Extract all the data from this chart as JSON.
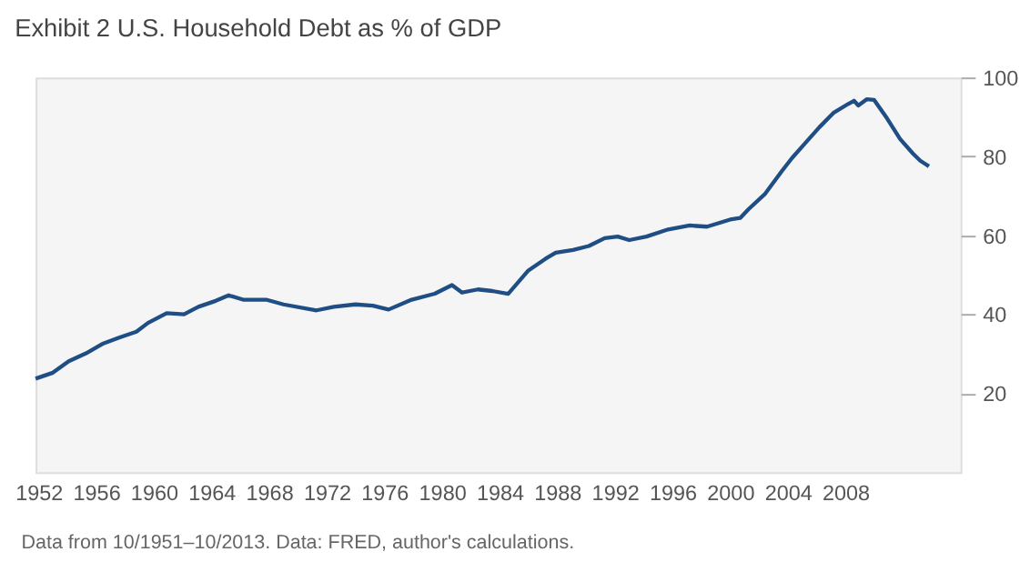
{
  "chart_data": {
    "type": "line",
    "title": "Exhibit 2 U.S. Household Debt as % of GDP",
    "annotations": [
      "Data from 10/1951–10/2013. Data: FRED, author's calculations."
    ],
    "x": [
      1951.8,
      1953.0,
      1954.1,
      1955.3,
      1956.5,
      1957.6,
      1958.8,
      1959.6,
      1960.9,
      1962.1,
      1963.1,
      1964.3,
      1965.2,
      1966.2,
      1967.8,
      1969.0,
      1971.3,
      1972.5,
      1974.0,
      1975.2,
      1976.3,
      1977.9,
      1979.5,
      1980.7,
      1981.4,
      1982.5,
      1983.5,
      1984.6,
      1986.0,
      1987.2,
      1987.9,
      1989.1,
      1990.2,
      1991.3,
      1992.2,
      1993.0,
      1994.2,
      1995.7,
      1997.2,
      1998.4,
      2000.0,
      2000.7,
      2001.3,
      2002.4,
      2003.6,
      2004.3,
      2005.3,
      2006.2,
      2007.2,
      2008.2,
      2008.6,
      2008.9,
      2009.5,
      2010.0,
      2010.9,
      2011.8,
      2012.7,
      2013.2,
      2013.8
    ],
    "series": [
      {
        "color": "#1f4e85",
        "values": [
          23.7,
          25.2,
          28.1,
          30.1,
          32.6,
          34.1,
          35.6,
          37.8,
          40.3,
          40.0,
          41.9,
          43.4,
          44.8,
          43.7,
          43.7,
          42.5,
          41.0,
          41.9,
          42.5,
          42.2,
          41.2,
          43.7,
          45.2,
          47.4,
          45.5,
          46.3,
          45.9,
          45.2,
          51.1,
          54.1,
          55.6,
          56.3,
          57.3,
          59.3,
          59.7,
          58.8,
          59.7,
          61.5,
          62.5,
          62.2,
          64.0,
          64.4,
          66.7,
          70.4,
          76.3,
          79.6,
          83.7,
          87.4,
          91.1,
          93.3,
          94.1,
          92.9,
          94.5,
          94.3,
          89.6,
          84.4,
          80.7,
          78.9,
          77.5
        ]
      }
    ],
    "xlim": [
      1951.8,
      2016
    ],
    "xticks": [
      1952,
      1956,
      1960,
      1964,
      1968,
      1972,
      1976,
      1980,
      1984,
      1988,
      1992,
      1996,
      2000,
      2004,
      2008
    ],
    "ylim": [
      0,
      100
    ],
    "yticks": [
      20,
      40,
      60,
      80,
      100
    ],
    "grid": false,
    "legend": false,
    "marker": "none",
    "line_style": "solid"
  }
}
